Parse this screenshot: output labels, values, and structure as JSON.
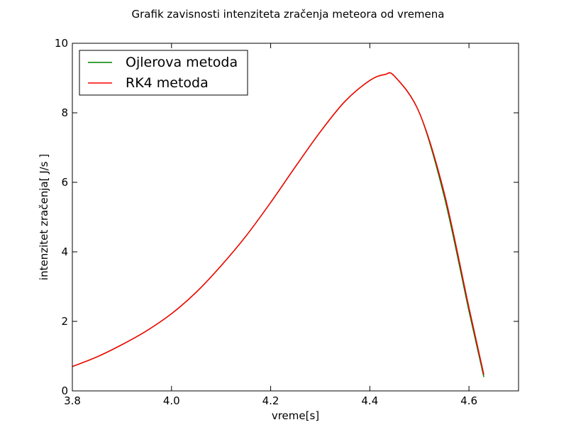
{
  "chart_data": {
    "type": "line",
    "title": "Grafik zavisnosti intenziteta zračenja meteora od vremena",
    "xlabel": "vreme[s]",
    "ylabel": "intenzitet zračenja[ J/s ]",
    "xlim": [
      3.8,
      4.7
    ],
    "ylim": [
      0,
      10
    ],
    "xticks": [
      3.8,
      4.0,
      4.2,
      4.4,
      4.6
    ],
    "xtick_labels": [
      "3.8",
      "4.0",
      "4.2",
      "4.4",
      "4.6"
    ],
    "yticks": [
      0,
      2,
      4,
      6,
      8,
      10
    ],
    "ytick_labels": [
      "0",
      "2",
      "4",
      "6",
      "8",
      "10"
    ],
    "grid": false,
    "legend_position": "top-left",
    "series": [
      {
        "name": "Ojlerova metoda",
        "color": "#008000",
        "x": [
          3.8,
          3.85,
          3.9,
          3.95,
          4.0,
          4.05,
          4.1,
          4.15,
          4.2,
          4.25,
          4.3,
          4.35,
          4.4,
          4.43,
          4.45,
          4.5,
          4.55,
          4.6,
          4.63
        ],
        "y": [
          0.7,
          0.98,
          1.33,
          1.73,
          2.22,
          2.84,
          3.6,
          4.45,
          5.42,
          6.45,
          7.45,
          8.33,
          8.93,
          9.1,
          9.05,
          8.0,
          5.6,
          2.3,
          0.4
        ]
      },
      {
        "name": "RK4 metoda",
        "color": "#ff0000",
        "x": [
          3.8,
          3.85,
          3.9,
          3.95,
          4.0,
          4.05,
          4.1,
          4.15,
          4.2,
          4.25,
          4.3,
          4.35,
          4.4,
          4.43,
          4.45,
          4.5,
          4.55,
          4.6,
          4.63
        ],
        "y": [
          0.7,
          0.98,
          1.33,
          1.73,
          2.22,
          2.84,
          3.6,
          4.45,
          5.42,
          6.45,
          7.45,
          8.33,
          8.93,
          9.1,
          9.05,
          8.0,
          5.7,
          2.4,
          0.47
        ]
      }
    ]
  }
}
